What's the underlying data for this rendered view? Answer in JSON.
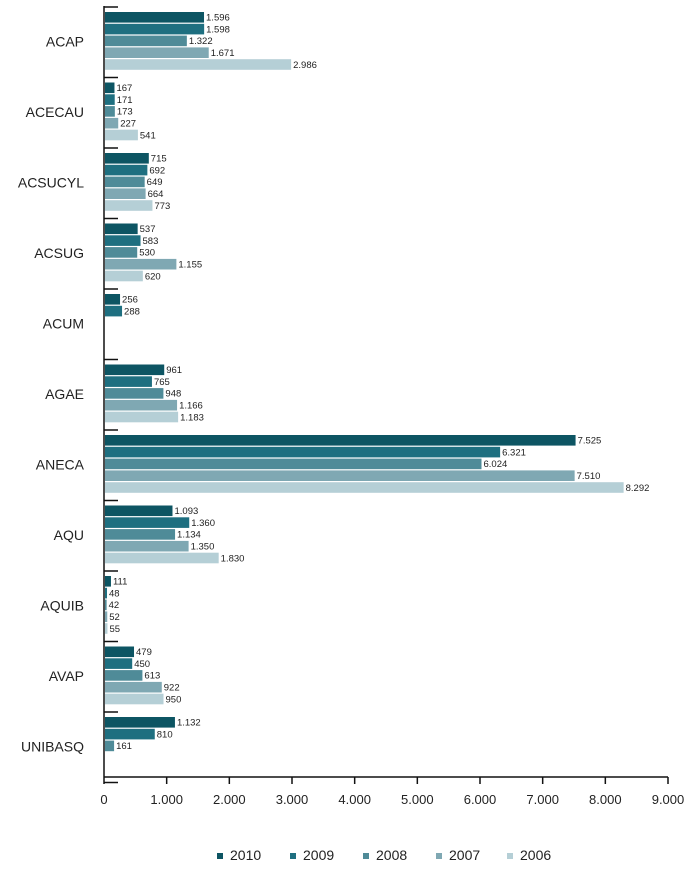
{
  "chart_data": {
    "type": "bar",
    "orientation": "horizontal",
    "categories": [
      "ACAP",
      "ACECAU",
      "ACSUCYL",
      "ACSUG",
      "ACUM",
      "AGAE",
      "ANECA",
      "AQU",
      "AQUIB",
      "AVAP",
      "UNIBASQ"
    ],
    "series": [
      {
        "name": "2010",
        "color": "#0d5563",
        "values": [
          1596,
          167,
          715,
          537,
          256,
          961,
          7525,
          1093,
          111,
          479,
          1132
        ],
        "labels": [
          "1.596",
          "167",
          "715",
          "537",
          "256",
          "961",
          "7.525",
          "1.093",
          "111",
          "479",
          "1.132"
        ]
      },
      {
        "name": "2009",
        "color": "#1e6f80",
        "values": [
          1598,
          171,
          692,
          583,
          288,
          765,
          6321,
          1360,
          48,
          450,
          810
        ],
        "labels": [
          "1.598",
          "171",
          "692",
          "583",
          "288",
          "765",
          "6.321",
          "1.360",
          "48",
          "450",
          "810"
        ]
      },
      {
        "name": "2008",
        "color": "#4f8b98",
        "values": [
          1322,
          173,
          649,
          530,
          null,
          948,
          6024,
          1134,
          42,
          613,
          161
        ],
        "labels": [
          "1.322",
          "173",
          "649",
          "530",
          "",
          "948",
          "6.024",
          "1.134",
          "42",
          "613",
          "161"
        ]
      },
      {
        "name": "2007",
        "color": "#7fa8b3",
        "values": [
          1671,
          227,
          664,
          1155,
          null,
          1166,
          7510,
          1350,
          52,
          922,
          null
        ],
        "labels": [
          "1.671",
          "227",
          "664",
          "1.155",
          "",
          "1.166",
          "7.510",
          "1.350",
          "52",
          "922",
          ""
        ]
      },
      {
        "name": "2006",
        "color": "#b5cfd6",
        "values": [
          2986,
          541,
          773,
          620,
          null,
          1183,
          8292,
          1830,
          55,
          950,
          null
        ],
        "labels": [
          "2.986",
          "541",
          "773",
          "620",
          "",
          "1.183",
          "8.292",
          "1.830",
          "55",
          "950",
          ""
        ]
      }
    ],
    "xlim": [
      0,
      9000
    ],
    "xticks": [
      0,
      1000,
      2000,
      3000,
      4000,
      5000,
      6000,
      7000,
      8000,
      9000
    ],
    "xtick_labels": [
      "0",
      "1.000",
      "2.000",
      "3.000",
      "4.000",
      "5.000",
      "6.000",
      "7.000",
      "8.000",
      "9.000"
    ],
    "legend_position": "bottom",
    "grid": false,
    "title": "",
    "xlabel": "",
    "ylabel": ""
  }
}
